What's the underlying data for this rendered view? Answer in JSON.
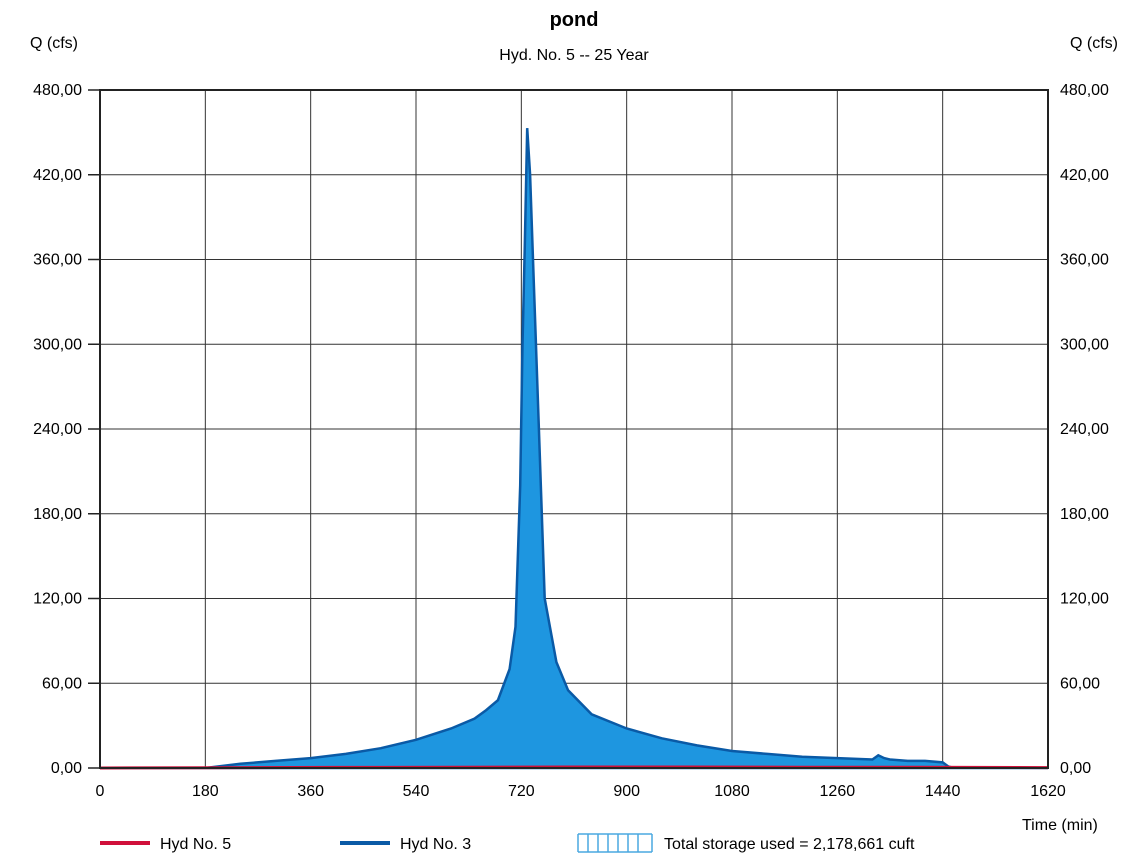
{
  "chart_data": {
    "type": "area",
    "title": "pond",
    "subtitle": "Hyd. No. 5 -- 25 Year",
    "ylabel_left": "Q (cfs)",
    "ylabel_right": "Q (cfs)",
    "xlabel": "Time (min)",
    "xlim": [
      0,
      1620
    ],
    "ylim": [
      0,
      480
    ],
    "x_ticks": [
      "0",
      "180",
      "360",
      "540",
      "720",
      "900",
      "1080",
      "1260",
      "1440",
      "1620"
    ],
    "y_ticks": [
      "0,00",
      "60,00",
      "120,00",
      "180,00",
      "240,00",
      "300,00",
      "360,00",
      "420,00",
      "480,00"
    ],
    "grid": true,
    "legend_position": "bottom",
    "storage_text": "Total storage used = 2,178,661 cuft",
    "series": [
      {
        "name": "Hyd No. 5",
        "color": "#d0103a",
        "x": [
          0,
          200,
          400,
          600,
          800,
          1000,
          1200,
          1400,
          1620
        ],
        "y": [
          0,
          0.2,
          0.4,
          0.6,
          0.7,
          0.7,
          0.6,
          0.5,
          0.3
        ]
      },
      {
        "name": "Hyd No. 3",
        "color": "#0a5aa6",
        "fill": "#1e96e0",
        "x": [
          0,
          180,
          240,
          300,
          360,
          420,
          480,
          540,
          600,
          640,
          660,
          680,
          700,
          710,
          718,
          722,
          726,
          730,
          735,
          740,
          750,
          760,
          780,
          800,
          840,
          900,
          960,
          1020,
          1080,
          1140,
          1200,
          1260,
          1320,
          1330,
          1340,
          1350,
          1380,
          1410,
          1440,
          1450,
          1460,
          1620
        ],
        "y": [
          0,
          0,
          3,
          5,
          7,
          10,
          14,
          20,
          28,
          35,
          41,
          48,
          70,
          100,
          200,
          300,
          370,
          453,
          420,
          360,
          240,
          120,
          75,
          55,
          38,
          28,
          21,
          16,
          12,
          10,
          8,
          7,
          6,
          9,
          7,
          6,
          5,
          5,
          4,
          1,
          0,
          0
        ]
      }
    ]
  }
}
